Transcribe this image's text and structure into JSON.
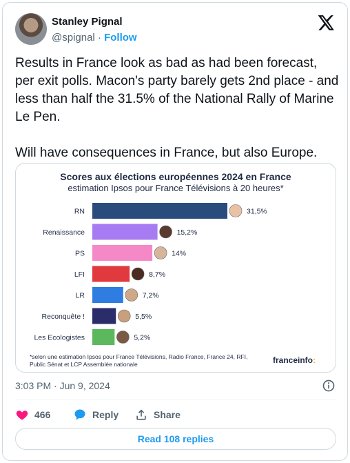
{
  "author": {
    "name": "Stanley Pignal",
    "handle": "@spignal",
    "separator": "·",
    "follow_label": "Follow"
  },
  "tweet_text": "Results in France look as bad as had been forecast, per exit polls. Macon's party barely gets 2nd place - and less than half the 31.5% of the National Rally of Marine Le Pen.\n\nWill have consequences in France, but also Europe.",
  "chart_data": {
    "type": "bar",
    "orientation": "horizontal",
    "title": "Scores aux élections européennes 2024 en France",
    "subtitle": "estimation Ipsos pour France Télévisions à 20 heures*",
    "categories": [
      "RN",
      "Renaissance",
      "PS",
      "LFI",
      "LR",
      "Reconquête !",
      "Les Ecologistes"
    ],
    "values": [
      31.5,
      15.2,
      14,
      8.7,
      7.2,
      5.5,
      5.2
    ],
    "value_labels": [
      "31,5%",
      "15,2%",
      "14%",
      "8,7%",
      "7,2%",
      "5,5%",
      "5,2%"
    ],
    "colors": [
      "#2a4c7d",
      "#a77cf2",
      "#f589c8",
      "#e03a3e",
      "#2f7de1",
      "#2b2d6b",
      "#5cb85c"
    ],
    "grid": false,
    "footnote": "*selon une estimation Ipsos pour France Télévisions, Radio France, France 24, RFI, Public Sénat et LCP Assemblée nationale",
    "brand": "franceinfo",
    "brand_accent": ":"
  },
  "timestamp": "3:03 PM · Jun 9, 2024",
  "actions": {
    "like_count": "466",
    "reply_label": "Reply",
    "share_label": "Share"
  },
  "read_replies_label": "Read 108 replies",
  "colors": {
    "link": "#1d9bf0",
    "like": "#f91880",
    "muted": "#536471"
  }
}
